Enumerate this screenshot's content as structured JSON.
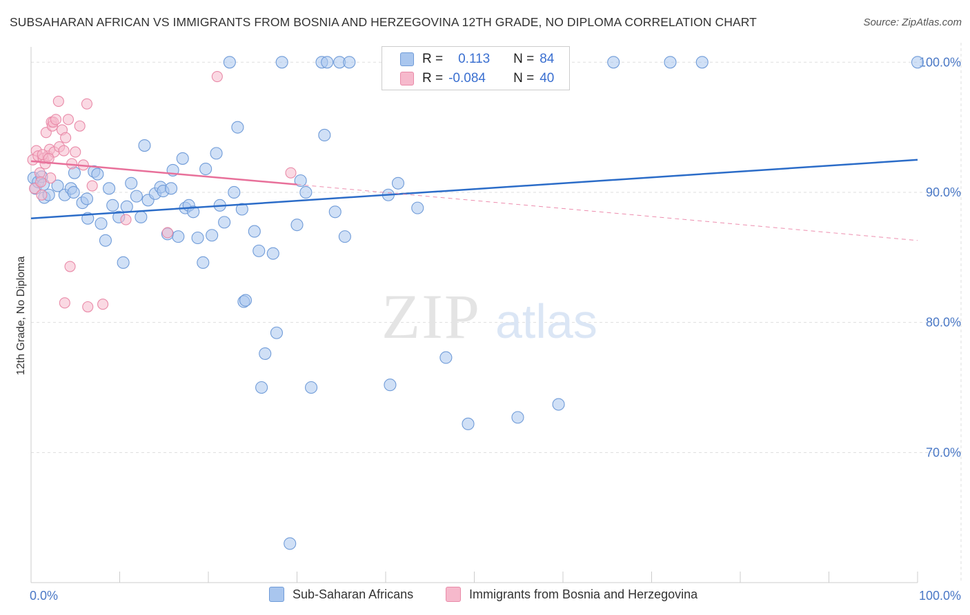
{
  "title": "SUBSAHARAN AFRICAN VS IMMIGRANTS FROM BOSNIA AND HERZEGOVINA 12TH GRADE, NO DIPLOMA CORRELATION CHART",
  "source": "Source: ZipAtlas.com",
  "watermark": {
    "zip": "ZIP",
    "atlas": "atlas"
  },
  "colors": {
    "blue_fill": "#a9c6ee",
    "blue_stroke": "#6f9bd8",
    "blue_line": "#2b6cc8",
    "pink_fill": "#f6b9cc",
    "pink_stroke": "#e98aa8",
    "pink_line": "#e8709a",
    "grid": "#dddddd",
    "tick_text": "#4a78c6"
  },
  "legend_top": {
    "rows": [
      {
        "r_label": "R =",
        "r_value": "0.113",
        "n_label": "N =",
        "n_value": "84",
        "color": "#a9c6ee",
        "stroke": "#6f9bd8"
      },
      {
        "r_label": "R =",
        "r_value": "-0.084",
        "n_label": "N =",
        "n_value": "40",
        "color": "#f6b9cc",
        "stroke": "#e98aa8"
      }
    ]
  },
  "chart_data": {
    "type": "scatter",
    "ylabel": "12th Grade, No Diploma",
    "xlabel": "",
    "xlim": [
      0,
      100
    ],
    "ylim": [
      60,
      101.5
    ],
    "x_ticks": [
      "0.0%",
      "100.0%"
    ],
    "y_ticks": [
      {
        "value": 100,
        "label": "100.0%"
      },
      {
        "value": 90,
        "label": "90.0%"
      },
      {
        "value": 80,
        "label": "80.0%"
      },
      {
        "value": 70,
        "label": "70.0%"
      }
    ],
    "legend_position": "bottom",
    "series": [
      {
        "name": "Sub-Saharan Africans",
        "trend": {
          "x": [
            0,
            100
          ],
          "y": [
            88.0,
            92.5
          ],
          "dashed_from": null
        },
        "points": [
          [
            0.3,
            91.1
          ],
          [
            0.5,
            90.3
          ],
          [
            0.8,
            90.8
          ],
          [
            1.2,
            91.2
          ],
          [
            1.4,
            90.6
          ],
          [
            1.5,
            89.6
          ],
          [
            2.0,
            89.8
          ],
          [
            3.0,
            90.5
          ],
          [
            3.8,
            89.8
          ],
          [
            4.5,
            90.3
          ],
          [
            4.8,
            90.0
          ],
          [
            5.8,
            89.2
          ],
          [
            6.4,
            88.0
          ],
          [
            7.1,
            91.6
          ],
          [
            7.5,
            91.4
          ],
          [
            7.9,
            87.6
          ],
          [
            8.4,
            86.3
          ],
          [
            8.8,
            90.3
          ],
          [
            9.2,
            89.0
          ],
          [
            9.9,
            88.1
          ],
          [
            10.4,
            84.6
          ],
          [
            10.8,
            88.9
          ],
          [
            11.3,
            90.7
          ],
          [
            11.9,
            89.7
          ],
          [
            12.4,
            88.1
          ],
          [
            12.8,
            93.6
          ],
          [
            13.2,
            89.4
          ],
          [
            14.0,
            89.9
          ],
          [
            14.6,
            90.4
          ],
          [
            14.9,
            90.1
          ],
          [
            15.4,
            86.8
          ],
          [
            16.0,
            91.7
          ],
          [
            16.6,
            86.6
          ],
          [
            17.1,
            92.6
          ],
          [
            17.4,
            88.8
          ],
          [
            17.8,
            89.0
          ],
          [
            18.3,
            88.5
          ],
          [
            18.8,
            86.5
          ],
          [
            19.4,
            84.6
          ],
          [
            19.7,
            91.8
          ],
          [
            20.4,
            86.7
          ],
          [
            20.9,
            93.0
          ],
          [
            21.3,
            89.0
          ],
          [
            21.8,
            87.7
          ],
          [
            22.4,
            100.0
          ],
          [
            22.9,
            90.0
          ],
          [
            23.3,
            95.0
          ],
          [
            24.0,
            81.6
          ],
          [
            24.2,
            81.7
          ],
          [
            25.2,
            87.0
          ],
          [
            25.7,
            85.5
          ],
          [
            26.0,
            75.0
          ],
          [
            26.4,
            77.6
          ],
          [
            27.3,
            85.3
          ],
          [
            27.7,
            79.2
          ],
          [
            28.3,
            100.0
          ],
          [
            29.2,
            63.0
          ],
          [
            30.0,
            87.5
          ],
          [
            30.4,
            90.9
          ],
          [
            31.0,
            90.0
          ],
          [
            31.6,
            75.0
          ],
          [
            32.8,
            100.0
          ],
          [
            33.1,
            94.4
          ],
          [
            33.4,
            100.0
          ],
          [
            34.3,
            88.5
          ],
          [
            34.8,
            100.0
          ],
          [
            35.4,
            86.6
          ],
          [
            35.9,
            100.0
          ],
          [
            40.3,
            89.8
          ],
          [
            40.5,
            75.2
          ],
          [
            41.4,
            90.7
          ],
          [
            43.6,
            88.8
          ],
          [
            46.8,
            77.3
          ],
          [
            49.3,
            72.2
          ],
          [
            54.9,
            72.7
          ],
          [
            59.5,
            73.7
          ],
          [
            65.7,
            100.0
          ],
          [
            72.1,
            100.0
          ],
          [
            75.7,
            100.0
          ],
          [
            100.0,
            100.0
          ],
          [
            4.9,
            91.5
          ],
          [
            15.8,
            90.3
          ],
          [
            23.8,
            88.7
          ],
          [
            6.3,
            89.5
          ]
        ]
      },
      {
        "name": "Immigrants from Bosnia and Herzegovina",
        "trend": {
          "x": [
            0,
            30.0,
            100
          ],
          "y": [
            92.4,
            90.6,
            86.3
          ],
          "dashed_from": 30.0
        },
        "points": [
          [
            0.2,
            92.5
          ],
          [
            0.4,
            90.3
          ],
          [
            0.6,
            93.2
          ],
          [
            0.8,
            92.8
          ],
          [
            1.0,
            91.5
          ],
          [
            1.1,
            90.8
          ],
          [
            1.2,
            89.8
          ],
          [
            1.4,
            92.6
          ],
          [
            1.6,
            92.2
          ],
          [
            1.7,
            94.6
          ],
          [
            1.9,
            92.8
          ],
          [
            2.1,
            93.3
          ],
          [
            2.2,
            91.1
          ],
          [
            2.3,
            95.4
          ],
          [
            2.4,
            95.1
          ],
          [
            2.5,
            95.4
          ],
          [
            2.6,
            93.1
          ],
          [
            2.8,
            95.6
          ],
          [
            3.1,
            97.0
          ],
          [
            3.2,
            93.5
          ],
          [
            3.5,
            94.8
          ],
          [
            3.7,
            93.2
          ],
          [
            3.8,
            81.5
          ],
          [
            3.9,
            94.2
          ],
          [
            4.2,
            95.6
          ],
          [
            4.4,
            84.3
          ],
          [
            4.6,
            92.2
          ],
          [
            5.0,
            93.1
          ],
          [
            5.5,
            95.1
          ],
          [
            5.9,
            92.1
          ],
          [
            6.3,
            96.8
          ],
          [
            6.4,
            81.2
          ],
          [
            6.9,
            90.5
          ],
          [
            8.1,
            81.4
          ],
          [
            10.7,
            87.9
          ],
          [
            15.4,
            86.9
          ],
          [
            21.0,
            98.9
          ],
          [
            29.3,
            91.5
          ],
          [
            1.3,
            92.9
          ],
          [
            2.0,
            92.6
          ]
        ]
      }
    ]
  },
  "bottom_legend": [
    {
      "label": "Sub-Saharan Africans",
      "color": "#a9c6ee",
      "stroke": "#6f9bd8"
    },
    {
      "label": "Immigrants from Bosnia and Herzegovina",
      "color": "#f6b9cc",
      "stroke": "#e98aa8"
    }
  ]
}
